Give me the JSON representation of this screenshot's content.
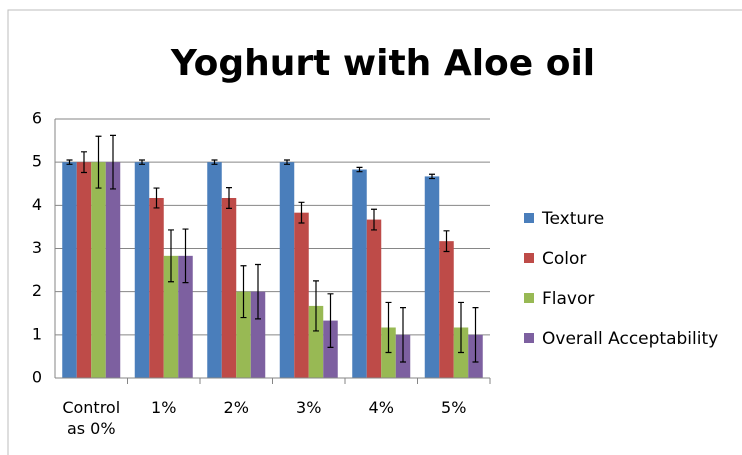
{
  "chart_data": {
    "type": "bar",
    "title": "Yoghurt with Aloe oil",
    "categories": [
      "Control as 0%",
      "1%",
      "2%",
      "3%",
      "4%",
      "5%"
    ],
    "series": [
      {
        "name": "Texture",
        "color": "#4a7ebb",
        "values": [
          5,
          5,
          5,
          5,
          4.83,
          4.67
        ],
        "errors": [
          0.05,
          0.05,
          0.05,
          0.05,
          0.05,
          0.05
        ]
      },
      {
        "name": "Color",
        "color": "#be4b48",
        "values": [
          5,
          4.17,
          4.17,
          3.83,
          3.67,
          3.17
        ],
        "errors": [
          0.24,
          0.23,
          0.24,
          0.24,
          0.24,
          0.24
        ]
      },
      {
        "name": "Flavor",
        "color": "#98b954",
        "values": [
          5,
          2.83,
          2,
          1.67,
          1.17,
          1.17
        ],
        "errors": [
          0.6,
          0.6,
          0.6,
          0.58,
          0.58,
          0.58
        ]
      },
      {
        "name": "Overall Acceptability",
        "color": "#7d60a0",
        "values": [
          5,
          2.83,
          2,
          1.33,
          1,
          1
        ],
        "errors": [
          0.62,
          0.62,
          0.63,
          0.62,
          0.63,
          0.63
        ]
      }
    ],
    "ylim": [
      0,
      6
    ],
    "yticks": [
      0,
      1,
      2,
      3,
      4,
      5,
      6
    ],
    "grid": true,
    "legend": "right"
  }
}
